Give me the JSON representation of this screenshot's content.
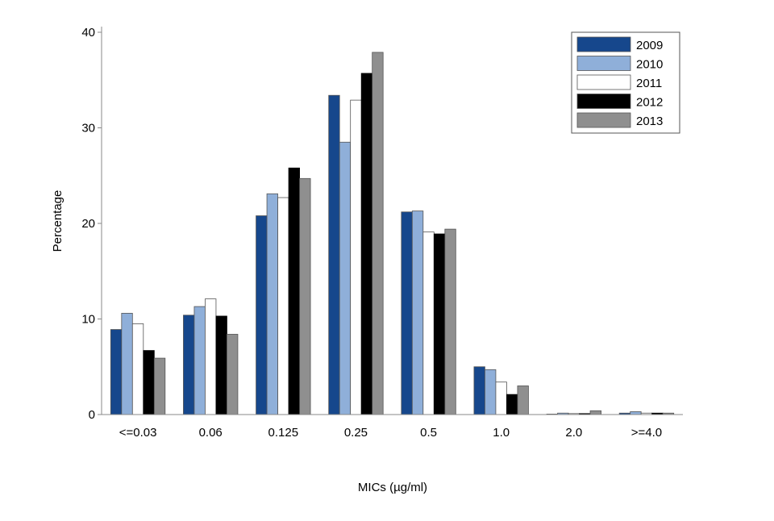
{
  "chart_data": {
    "type": "bar",
    "title": "",
    "xlabel": "MICs (µg/ml)",
    "ylabel": "Percentage",
    "ylim": [
      0,
      40
    ],
    "yticks": [
      "0",
      "10",
      "20",
      "30",
      "40"
    ],
    "grid": false,
    "legend_position": "top-right",
    "categories": [
      "<=0.03",
      "0.06",
      "0.125",
      "0.25",
      "0.5",
      "1.0",
      "2.0",
      ">=4.0"
    ],
    "series": [
      {
        "name": "2009",
        "color": "#16478c",
        "values": [
          8.9,
          10.4,
          20.8,
          33.4,
          21.2,
          5.0,
          0.05,
          0.15
        ]
      },
      {
        "name": "2010",
        "color": "#8fafd9",
        "values": [
          10.6,
          11.3,
          23.1,
          28.5,
          21.3,
          4.7,
          0.15,
          0.3
        ]
      },
      {
        "name": "2011",
        "color": "#ffffff",
        "values": [
          9.5,
          12.1,
          22.7,
          32.9,
          19.1,
          3.4,
          0.1,
          0.15
        ]
      },
      {
        "name": "2012",
        "color": "#000000",
        "values": [
          6.7,
          10.3,
          25.8,
          35.7,
          18.9,
          2.1,
          0.1,
          0.15
        ]
      },
      {
        "name": "2013",
        "color": "#8f8f8f",
        "values": [
          5.9,
          8.4,
          24.7,
          37.9,
          19.4,
          3.0,
          0.4,
          0.15
        ]
      }
    ]
  }
}
